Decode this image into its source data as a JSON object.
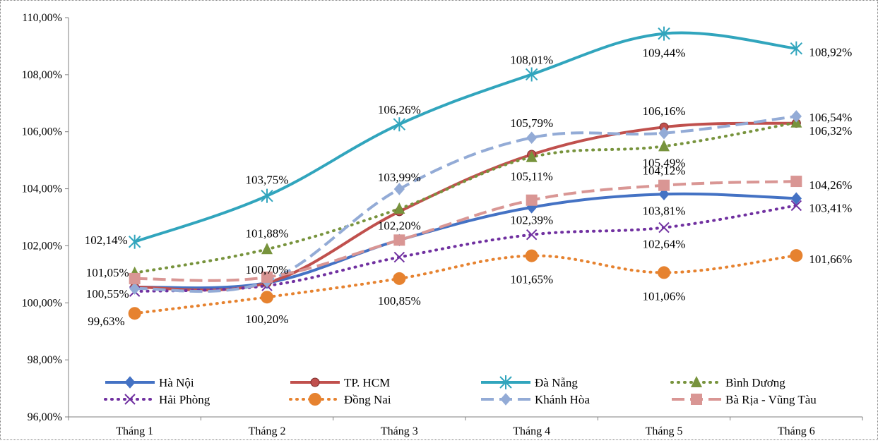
{
  "chart_data": {
    "type": "line",
    "title": "",
    "xlabel": "",
    "ylabel": "",
    "categories": [
      "Tháng 1",
      "Tháng 2",
      "Tháng 3",
      "Tháng 4",
      "Tháng 5",
      "Tháng 6"
    ],
    "ylim": [
      96,
      110
    ],
    "yticks": [
      "96,00%",
      "98,00%",
      "100,00%",
      "102,00%",
      "104,00%",
      "106,00%",
      "108,00%",
      "110,00%"
    ],
    "grid": false,
    "legend_position": "bottom",
    "series": [
      {
        "name": "Hà Nội",
        "values": [
          100.55,
          100.7,
          102.2,
          103.35,
          103.81,
          103.66
        ],
        "labels": [
          "",
          "",
          "102,20%",
          "",
          "103,81%",
          ""
        ],
        "color": "#4472c4",
        "dash": "solid",
        "marker": "diamond"
      },
      {
        "name": "TP. HCM",
        "values": [
          100.55,
          100.7,
          103.2,
          105.2,
          106.16,
          106.3
        ],
        "labels": [
          "100,55%",
          "100,70%",
          "",
          "",
          "106,16%",
          ""
        ],
        "color": "#c0504d",
        "dash": "solid",
        "marker": "circle"
      },
      {
        "name": "Đà Nẵng",
        "values": [
          102.14,
          103.75,
          106.26,
          108.01,
          109.44,
          108.92
        ],
        "labels": [
          "102,14%",
          "103,75%",
          "106,26%",
          "108,01%",
          "109,44%",
          "108,92%"
        ],
        "color": "#31a5bd",
        "dash": "solid",
        "marker": "asterisk"
      },
      {
        "name": "Bình Dương",
        "values": [
          101.05,
          101.88,
          103.3,
          105.11,
          105.49,
          106.32
        ],
        "labels": [
          "101,05%",
          "101,88%",
          "",
          "105,11%",
          "105,49%",
          "106,32%"
        ],
        "color": "#77933c",
        "dash": "dot",
        "marker": "triangle"
      },
      {
        "name": "Hải Phòng",
        "values": [
          100.4,
          100.6,
          101.6,
          102.39,
          102.64,
          103.41
        ],
        "labels": [
          "",
          "",
          "",
          "102,39%",
          "102,64%",
          "103,41%"
        ],
        "color": "#7030a0",
        "dash": "dot",
        "marker": "x"
      },
      {
        "name": "Đồng Nai",
        "values": [
          99.63,
          100.2,
          100.85,
          101.65,
          101.06,
          101.66
        ],
        "labels": [
          "99,63%",
          "100,20%",
          "100,85%",
          "101,65%",
          "101,06%",
          "101,66%"
        ],
        "color": "#e6822f",
        "dash": "dot",
        "marker": "circle-big"
      },
      {
        "name": "Khánh Hòa",
        "values": [
          100.5,
          100.75,
          103.99,
          105.79,
          105.95,
          106.54
        ],
        "labels": [
          "",
          "",
          "103,99%",
          "105,79%",
          "",
          "106,54%"
        ],
        "color": "#93abd6",
        "dash": "dash",
        "marker": "diamond"
      },
      {
        "name": "Bà Rịa - Vũng Tàu",
        "values": [
          100.85,
          100.9,
          102.2,
          103.6,
          104.12,
          104.26
        ],
        "labels": [
          "",
          "",
          "",
          "",
          "104,12%",
          "104,26%"
        ],
        "color": "#d99694",
        "dash": "dash",
        "marker": "square"
      }
    ]
  }
}
